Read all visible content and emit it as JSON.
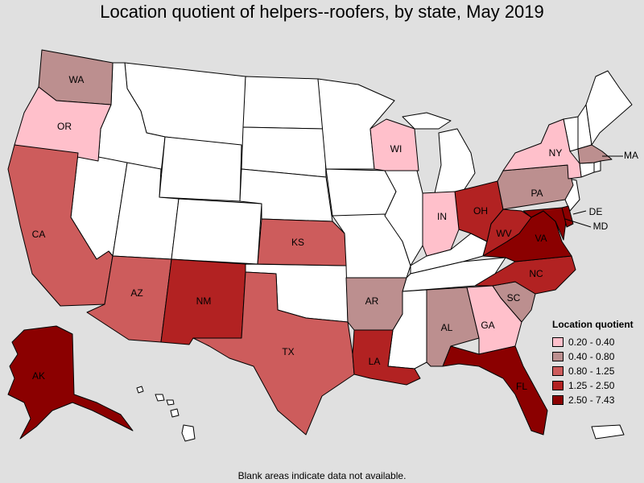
{
  "title": "Location quotient of helpers--roofers, by state, May 2019",
  "footnote": "Blank areas indicate data not available.",
  "legend": {
    "title": "Location quotient",
    "bins": [
      {
        "label": "0.20 - 0.40",
        "color": "#ffc0cb"
      },
      {
        "label": "0.40 - 0.80",
        "color": "#bc8f8f"
      },
      {
        "label": "0.80 - 1.25",
        "color": "#cd5c5c"
      },
      {
        "label": "1.25 - 2.50",
        "color": "#b22222"
      },
      {
        "label": "2.50 - 7.43",
        "color": "#8b0000"
      }
    ]
  },
  "no_data_color": "#ffffff",
  "states": {
    "WA": {
      "label": "WA",
      "bin": 1
    },
    "OR": {
      "label": "OR",
      "bin": 0
    },
    "CA": {
      "label": "CA",
      "bin": 2
    },
    "AZ": {
      "label": "AZ",
      "bin": 2
    },
    "NM": {
      "label": "NM",
      "bin": 3
    },
    "TX": {
      "label": "TX",
      "bin": 2
    },
    "KS": {
      "label": "KS",
      "bin": 2
    },
    "AR": {
      "label": "AR",
      "bin": 1
    },
    "LA": {
      "label": "LA",
      "bin": 3
    },
    "AL": {
      "label": "AL",
      "bin": 1
    },
    "GA": {
      "label": "GA",
      "bin": 0
    },
    "SC": {
      "label": "SC",
      "bin": 1
    },
    "NC": {
      "label": "NC",
      "bin": 3
    },
    "FL": {
      "label": "FL",
      "bin": 4
    },
    "VA": {
      "label": "VA",
      "bin": 4
    },
    "WV": {
      "label": "WV",
      "bin": 3
    },
    "OH": {
      "label": "OH",
      "bin": 3
    },
    "IN": {
      "label": "IN",
      "bin": 0
    },
    "WI": {
      "label": "WI",
      "bin": 0
    },
    "PA": {
      "label": "PA",
      "bin": 1
    },
    "NY": {
      "label": "NY",
      "bin": 0
    },
    "MA": {
      "label": "MA",
      "bin": 1
    },
    "MD": {
      "label": "MD",
      "bin": 4
    },
    "DE": {
      "label": "DE",
      "bin": 4
    },
    "AK": {
      "label": "AK",
      "bin": 4
    }
  }
}
